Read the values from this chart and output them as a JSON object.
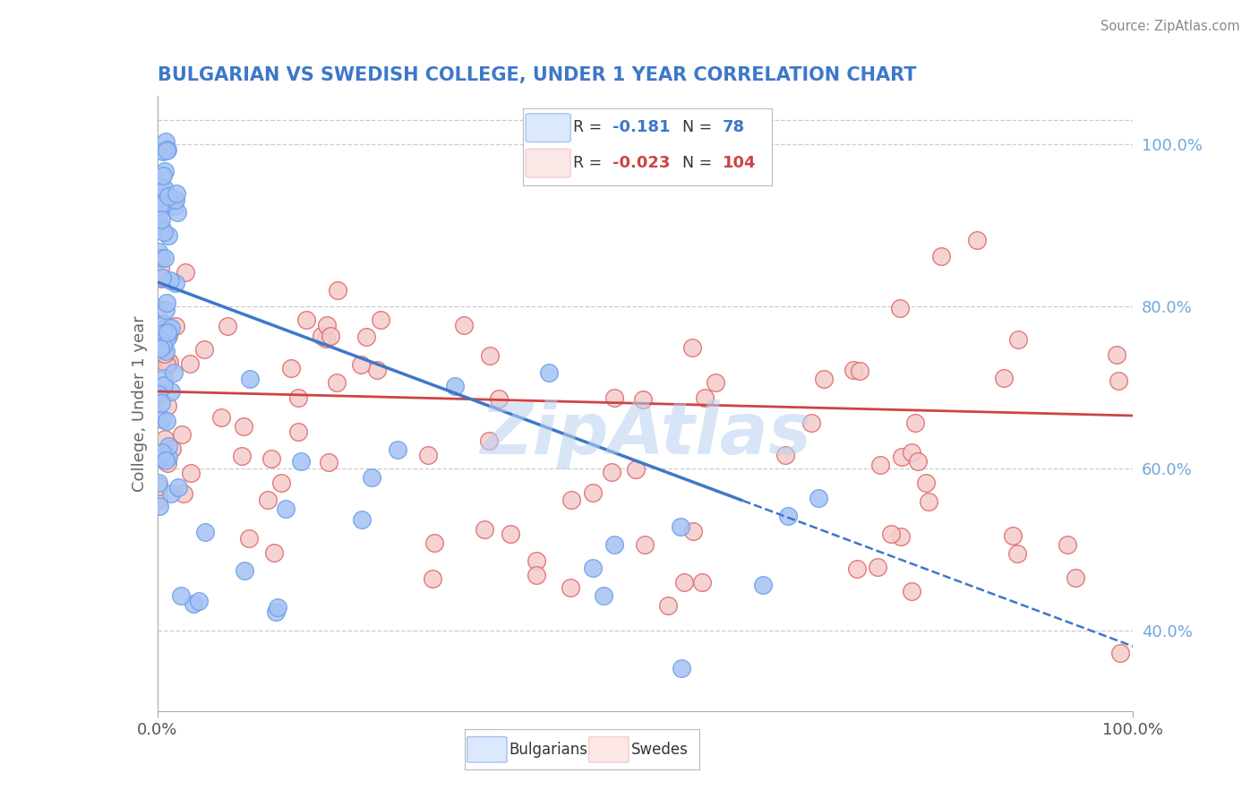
{
  "title": "BULGARIAN VS SWEDISH COLLEGE, UNDER 1 YEAR CORRELATION CHART",
  "source_text": "Source: ZipAtlas.com",
  "ylabel": "College, Under 1 year",
  "xlim": [
    0.0,
    1.0
  ],
  "ylim": [
    0.3,
    1.06
  ],
  "y_ticks_right": [
    0.4,
    0.6,
    0.8,
    1.0
  ],
  "y_tick_labels_right": [
    "40.0%",
    "60.0%",
    "80.0%",
    "100.0%"
  ],
  "bulgarian_color": "#a4c2f4",
  "bulgarian_edge": "#6d9eeb",
  "swedish_color": "#f4cccc",
  "swedish_edge": "#e06666",
  "bulgarian_line_color": "#3d78c9",
  "swedish_line_color": "#cc4444",
  "R_bulgarian": -0.181,
  "N_bulgarian": 78,
  "R_swedish": -0.023,
  "N_swedish": 104,
  "legend_fill_bulgarian": "#dce8fb",
  "legend_fill_swedish": "#fce8e6",
  "legend_edge_bulgarian": "#a4c2f4",
  "legend_edge_swedish": "#f4cccc",
  "watermark": "ZipAtlas",
  "watermark_color": "#b8d0f0",
  "bg_line_x0": 0.0,
  "bg_line_x1": 0.6,
  "bg_line_y0": 0.83,
  "bg_line_y1": 0.56,
  "sw_line_x0": 0.0,
  "sw_line_x1": 1.0,
  "sw_line_y0": 0.695,
  "sw_line_y1": 0.665
}
